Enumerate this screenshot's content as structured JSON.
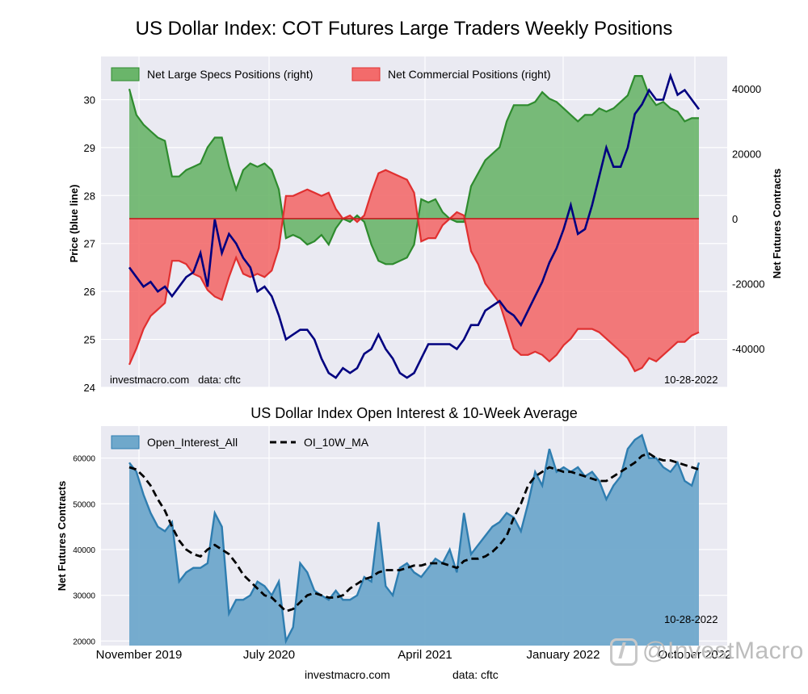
{
  "page": {
    "title": "US Dollar Index: COT Futures Large Traders Weekly Positions",
    "subtitle": "US Dollar Index Open Interest & 10-Week Average",
    "footer_site": "investmacro.com",
    "footer_data": "data: cftc",
    "watermark": "@InvestMacro"
  },
  "chart_data": [
    {
      "type": "area",
      "left_axis_label": "Price (blue line)",
      "right_axis_label": "Net Futures Contracts",
      "left_ylim": [
        24,
        30.9
      ],
      "right_ylim": [
        -52000,
        50000
      ],
      "left_ticks": [
        "24",
        "25",
        "26",
        "27",
        "28",
        "29",
        "30"
      ],
      "right_ticks": [
        "-40000",
        "-20000",
        "0",
        "20000",
        "40000"
      ],
      "annotation_left": "investmacro.com   data: cftc",
      "annotation_right": "10-28-2022",
      "legend": [
        "Net Large Specs Positions (right)",
        "Net Commercial Positions (right)"
      ],
      "legend_placement": "top-left",
      "colors": {
        "specs": "#2e8b2e",
        "specs_fill": "#6ab56a",
        "comm": "#e03030",
        "comm_fill": "#f36b6b",
        "price": "#000080"
      },
      "x": [
        "2019-10-01",
        "2019-10-15",
        "2019-10-29",
        "2019-11-12",
        "2019-11-26",
        "2019-12-10",
        "2019-12-24",
        "2020-01-07",
        "2020-01-21",
        "2020-02-04",
        "2020-02-18",
        "2020-03-03",
        "2020-03-17",
        "2020-03-31",
        "2020-04-14",
        "2020-04-28",
        "2020-05-12",
        "2020-05-26",
        "2020-06-09",
        "2020-06-23",
        "2020-07-07",
        "2020-07-21",
        "2020-08-04",
        "2020-08-18",
        "2020-09-01",
        "2020-09-15",
        "2020-09-29",
        "2020-10-13",
        "2020-10-27",
        "2020-11-10",
        "2020-11-24",
        "2020-12-08",
        "2020-12-22",
        "2021-01-05",
        "2021-01-19",
        "2021-02-02",
        "2021-02-16",
        "2021-03-02",
        "2021-03-16",
        "2021-03-30",
        "2021-04-13",
        "2021-04-27",
        "2021-05-11",
        "2021-05-25",
        "2021-06-08",
        "2021-06-22",
        "2021-07-06",
        "2021-07-20",
        "2021-08-03",
        "2021-08-17",
        "2021-08-31",
        "2021-09-14",
        "2021-09-28",
        "2021-10-12",
        "2021-10-26",
        "2021-11-09",
        "2021-11-23",
        "2021-12-07",
        "2021-12-21",
        "2022-01-04",
        "2022-01-18",
        "2022-02-01",
        "2022-02-15",
        "2022-03-01",
        "2022-03-15",
        "2022-03-29",
        "2022-04-12",
        "2022-04-26",
        "2022-05-10",
        "2022-05-24",
        "2022-06-07",
        "2022-06-21",
        "2022-07-05",
        "2022-07-19",
        "2022-08-02",
        "2022-08-16",
        "2022-08-30",
        "2022-09-13",
        "2022-09-27",
        "2022-10-11",
        "2022-10-28"
      ],
      "series": [
        {
          "name": "Net Large Specs Positions (right)",
          "values": [
            40000,
            32000,
            29000,
            27000,
            25000,
            24000,
            13000,
            13000,
            15000,
            16000,
            17000,
            22000,
            25000,
            25000,
            16000,
            9000,
            15000,
            17000,
            16000,
            17000,
            15000,
            9000,
            -6000,
            -5000,
            -6000,
            -8000,
            -7000,
            -5000,
            -8000,
            -3000,
            0,
            -1000,
            1000,
            -1000,
            -8000,
            -13000,
            -14000,
            -14000,
            -13000,
            -12000,
            -8000,
            6000,
            5000,
            6000,
            2000,
            0,
            -1000,
            -1000,
            10000,
            14000,
            18000,
            20000,
            22000,
            30000,
            35000,
            35000,
            35000,
            36000,
            39000,
            37000,
            36000,
            34000,
            32000,
            30000,
            32000,
            32000,
            34000,
            33000,
            34000,
            36000,
            38000,
            44000,
            44000,
            38000,
            35000,
            36000,
            34000,
            33000,
            30000,
            31000,
            31000
          ]
        },
        {
          "name": "Net Commercial Positions (right)",
          "values": [
            -45000,
            -40000,
            -34000,
            -30000,
            -28000,
            -26000,
            -13000,
            -13000,
            -14000,
            -17000,
            -18000,
            -22000,
            -24000,
            -25000,
            -18000,
            -12000,
            -17000,
            -18000,
            -17000,
            -18000,
            -16000,
            -9000,
            7000,
            7000,
            8000,
            9000,
            8000,
            7000,
            8000,
            3000,
            0,
            1000,
            -1000,
            1000,
            8000,
            14000,
            15000,
            14000,
            13000,
            12000,
            8000,
            -7000,
            -6000,
            -6000,
            -2000,
            0,
            2000,
            1000,
            -10000,
            -14000,
            -20000,
            -23000,
            -26000,
            -33000,
            -40000,
            -42000,
            -42000,
            -41000,
            -42000,
            -44000,
            -42000,
            -39000,
            -37000,
            -34000,
            -34000,
            -34000,
            -35000,
            -37000,
            -39000,
            -41000,
            -43000,
            -47000,
            -46000,
            -43000,
            -44000,
            -42000,
            -40000,
            -38000,
            -38000,
            -36000,
            -35000
          ]
        },
        {
          "name": "Price (blue line)",
          "values": [
            26.5,
            26.3,
            26.1,
            26.2,
            26.0,
            26.1,
            25.9,
            26.1,
            26.3,
            26.4,
            26.8,
            26.1,
            27.5,
            26.8,
            27.2,
            27.0,
            26.7,
            26.5,
            26.0,
            26.1,
            25.9,
            25.5,
            25.0,
            25.1,
            25.2,
            25.2,
            25.0,
            24.6,
            24.3,
            24.2,
            24.4,
            24.3,
            24.4,
            24.7,
            24.8,
            25.1,
            24.8,
            24.6,
            24.3,
            24.2,
            24.3,
            24.6,
            24.9,
            24.9,
            24.9,
            24.9,
            24.8,
            25.0,
            25.3,
            25.3,
            25.6,
            25.7,
            25.8,
            25.6,
            25.5,
            25.3,
            25.6,
            25.9,
            26.2,
            26.6,
            26.9,
            27.3,
            27.8,
            27.2,
            27.3,
            27.8,
            28.4,
            29.0,
            28.6,
            28.6,
            29.0,
            29.7,
            29.9,
            30.2,
            30.0,
            30.0,
            30.5,
            30.1,
            30.2,
            30.0,
            29.8
          ]
        }
      ]
    },
    {
      "type": "area",
      "title": "US Dollar Index Open Interest & 10-Week Average",
      "ylabel": "Net Futures Contracts",
      "ylim": [
        19000,
        67000
      ],
      "y_ticks": [
        "20000",
        "30000",
        "40000",
        "50000",
        "60000"
      ],
      "x_tick_labels": [
        "November 2019",
        "July 2020",
        "April 2021",
        "January 2022",
        "October 2022"
      ],
      "annotation_right": "10-28-2022",
      "legend": [
        "Open_Interest_All",
        "OI_10W_MA"
      ],
      "legend_placement": "top-left",
      "colors": {
        "oi": "#2e7db0",
        "oi_fill": "#6fa8cb",
        "ma": "#000000"
      },
      "series": [
        {
          "name": "Open_Interest_All",
          "values": [
            59000,
            57000,
            52000,
            48000,
            45000,
            44000,
            46000,
            33000,
            35000,
            36000,
            36000,
            37000,
            48000,
            45000,
            26000,
            29000,
            29000,
            30000,
            33000,
            32000,
            30000,
            33000,
            20000,
            23000,
            37000,
            35000,
            31000,
            30000,
            29000,
            31000,
            29000,
            29000,
            30000,
            34000,
            33000,
            46000,
            32000,
            30000,
            36000,
            37000,
            35000,
            34000,
            36000,
            38000,
            37000,
            40000,
            35000,
            48000,
            39000,
            41000,
            43000,
            45000,
            46000,
            48000,
            47000,
            44000,
            50000,
            57000,
            54000,
            62000,
            57000,
            58000,
            57000,
            58000,
            56000,
            57000,
            55000,
            51000,
            54000,
            56000,
            62000,
            64000,
            65000,
            60000,
            60000,
            58000,
            57000,
            59000,
            55000,
            54000,
            59000
          ]
        },
        {
          "name": "OI_10W_MA",
          "values": [
            58000,
            57500,
            56000,
            54000,
            51000,
            48500,
            45000,
            42000,
            40000,
            39000,
            38500,
            40000,
            41000,
            40000,
            39000,
            37000,
            34500,
            33000,
            31500,
            30000,
            29500,
            28000,
            26500,
            27000,
            28500,
            30000,
            30500,
            30000,
            29500,
            29500,
            30000,
            31500,
            32500,
            33500,
            34000,
            35000,
            35500,
            35500,
            35500,
            36000,
            36500,
            36500,
            37000,
            37000,
            37000,
            36500,
            36000,
            37500,
            38000,
            38000,
            38500,
            39500,
            41000,
            43000,
            47000,
            50000,
            54000,
            56000,
            57000,
            58000,
            57500,
            57000,
            57000,
            56500,
            56000,
            55500,
            55000,
            55000,
            56000,
            57000,
            58000,
            59000,
            60500,
            61000,
            60000,
            59500,
            59500,
            59000,
            58500,
            58000,
            57500
          ]
        }
      ]
    }
  ]
}
